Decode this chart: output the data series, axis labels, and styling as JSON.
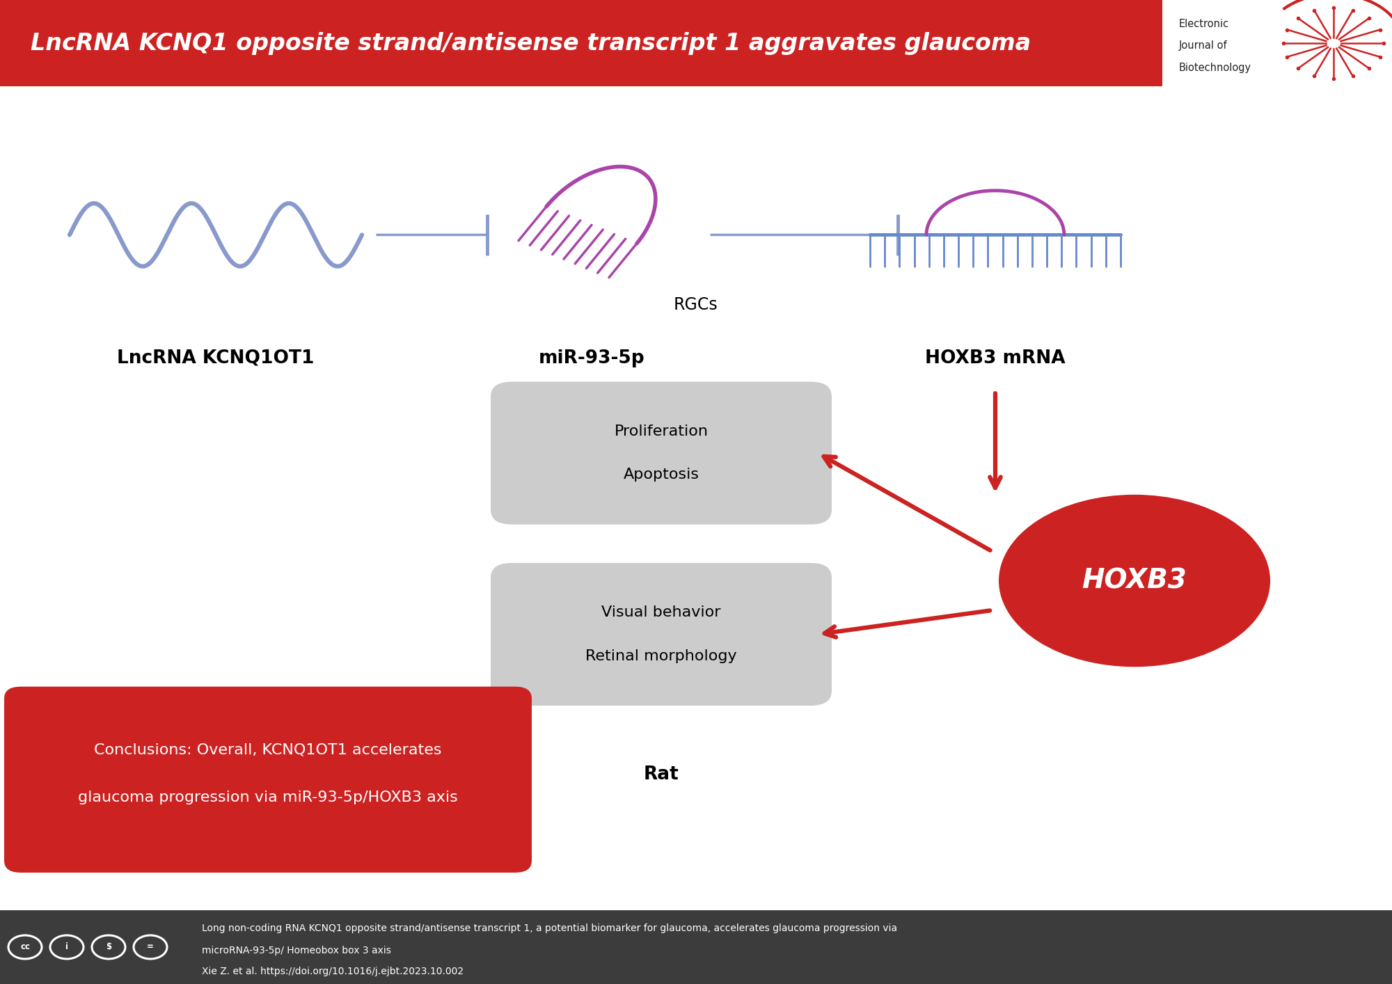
{
  "title": "LncRNA KCNQ1 opposite strand/antisense transcript 1 aggravates glaucoma",
  "header_bg": "#CC2222",
  "header_text_color": "#FFFFFF",
  "main_bg": "#FFFFFF",
  "footer_bg": "#3C3C3C",
  "footer_text_color": "#FFFFFF",
  "footer_line1": "Long non-coding RNA KCNQ1 opposite strand/antisense transcript 1, a potential biomarker for glaucoma, accelerates glaucoma progression via",
  "footer_line2": "microRNA-93-5p/ Homeobox box 3 axis",
  "footer_line3": "Xie Z. et al. https://doi.org/10.1016/j.ejbt.2023.10.002",
  "lncrna_label": "LncRNA KCNQ1OT1",
  "mir_label": "miR-93-5p",
  "hoxb3mrna_label": "HOXB3 mRNA",
  "hoxb3_label": "HOXB3",
  "rgcs_label": "RGCs",
  "rat_label": "Rat",
  "box1_line1": "Proliferation",
  "box1_line2": "Apoptosis",
  "box2_line1": "Visual behavior",
  "box2_line2": "Retinal morphology",
  "conclusion_line1": "Conclusions: Overall, KCNQ1OT1 accelerates",
  "conclusion_line2": "glaucoma progression via miR-93-5p/HOXB3 axis",
  "wave_color": "#8899CC",
  "mir_color": "#AA44AA",
  "mrna_teeth_color": "#6688CC",
  "mrna_arc_color": "#AA44AA",
  "hoxb3_ellipse_color": "#CC2222",
  "arrow_color": "#CC2222",
  "inhibit_line_color": "#8899CC",
  "box_fill": "#CCCCCC",
  "conclusion_bg": "#CC2222",
  "conclusion_text": "#FFFFFF"
}
